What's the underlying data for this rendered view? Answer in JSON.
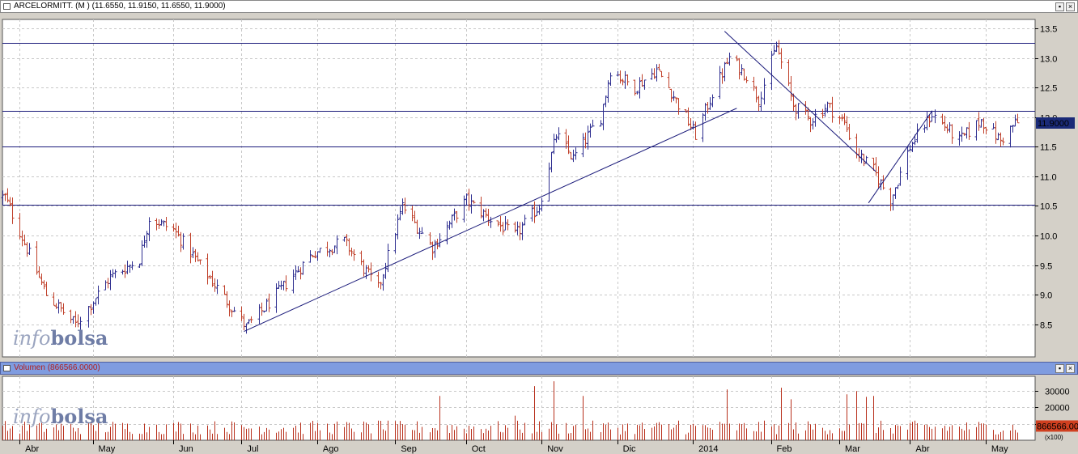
{
  "price_panel": {
    "title": "ARCELORMITT. (M ) (11.6550, 11.9150, 11.6550, 11.9000)",
    "last_price_label": "11.9000",
    "watermark": {
      "part1": "info",
      "part2": "bolsa"
    }
  },
  "volume_panel": {
    "title": "Volumen (866566.0000)",
    "last_volume_label": "866566.00",
    "scale_note": "(x100)",
    "watermark": {
      "part1": "info",
      "part2": "bolsa"
    }
  },
  "colors": {
    "up_bar": "#2d2d8f",
    "down_bar": "#c0402a",
    "trendline": "#1a1a7a",
    "volume_bar": "#b8301c",
    "price_header": "#ffffff",
    "volume_header": "#7f9ce0",
    "last_price_box": "#1a2a78",
    "last_volume_box": "#d04020"
  },
  "chart_data": [
    {
      "type": "ohlc",
      "title": "ARCELORMITT. (M ) (11.6550, 11.9150, 11.6550, 11.9000)",
      "y_ticks": [
        8.5,
        9.0,
        9.5,
        10.0,
        10.5,
        11.0,
        11.5,
        12.0,
        12.5,
        13.0,
        13.5
      ],
      "ylim": [
        7.95,
        13.65
      ],
      "x_months": [
        "Abr",
        "May",
        "Jun",
        "Jul",
        "Ago",
        "Sep",
        "Oct",
        "Nov",
        "Dic",
        "2014",
        "Feb",
        "Mar",
        "Abr",
        "May"
      ],
      "last": {
        "open": 11.655,
        "high": 11.915,
        "low": 11.655,
        "close": 11.9
      },
      "horizontal_lines": [
        13.25,
        12.1,
        11.5,
        10.52
      ],
      "trendlines": [
        {
          "from": [
            "2013-07-02",
            8.38
          ],
          "to": [
            "2014-01-20",
            12.15
          ]
        },
        {
          "from": [
            "2014-01-15",
            13.45
          ],
          "to": [
            "2014-03-18",
            11.08
          ]
        },
        {
          "from": [
            "2014-03-15",
            10.55
          ],
          "to": [
            "2014-04-10",
            12.1
          ]
        }
      ],
      "points": [
        {
          "x": "2013-03-26",
          "y": 10.65
        },
        {
          "x": "2013-04-12",
          "y": 9.0
        },
        {
          "x": "2013-04-24",
          "y": 8.5
        },
        {
          "x": "2013-05-08",
          "y": 9.3
        },
        {
          "x": "2013-05-20",
          "y": 9.6
        },
        {
          "x": "2013-05-24",
          "y": 10.3
        },
        {
          "x": "2013-06-03",
          "y": 10.1
        },
        {
          "x": "2013-06-24",
          "y": 8.95
        },
        {
          "x": "2013-07-03",
          "y": 8.45
        },
        {
          "x": "2013-07-15",
          "y": 9.0
        },
        {
          "x": "2013-07-30",
          "y": 9.7
        },
        {
          "x": "2013-08-12",
          "y": 9.9
        },
        {
          "x": "2013-08-26",
          "y": 9.1
        },
        {
          "x": "2013-09-05",
          "y": 10.5
        },
        {
          "x": "2013-09-17",
          "y": 9.8
        },
        {
          "x": "2013-10-01",
          "y": 10.6
        },
        {
          "x": "2013-10-10",
          "y": 10.3
        },
        {
          "x": "2013-10-21",
          "y": 10.0
        },
        {
          "x": "2013-10-31",
          "y": 10.5
        },
        {
          "x": "2013-11-07",
          "y": 11.7
        },
        {
          "x": "2013-11-14",
          "y": 11.3
        },
        {
          "x": "2013-11-25",
          "y": 12.0
        },
        {
          "x": "2013-11-29",
          "y": 12.8
        },
        {
          "x": "2013-12-09",
          "y": 12.5
        },
        {
          "x": "2013-12-18",
          "y": 12.8
        },
        {
          "x": "2013-12-23",
          "y": 12.5
        },
        {
          "x": "2014-01-03",
          "y": 11.7
        },
        {
          "x": "2014-01-10",
          "y": 12.4
        },
        {
          "x": "2014-01-17",
          "y": 13.0
        },
        {
          "x": "2014-01-24",
          "y": 12.7
        },
        {
          "x": "2014-01-29",
          "y": 12.3
        },
        {
          "x": "2014-02-05",
          "y": 13.2
        },
        {
          "x": "2014-02-12",
          "y": 12.2
        },
        {
          "x": "2014-02-19",
          "y": 11.95
        },
        {
          "x": "2014-02-26",
          "y": 12.2
        },
        {
          "x": "2014-03-05",
          "y": 11.9
        },
        {
          "x": "2014-03-10",
          "y": 11.4
        },
        {
          "x": "2014-03-17",
          "y": 11.1
        },
        {
          "x": "2014-03-24",
          "y": 10.6
        },
        {
          "x": "2014-04-01",
          "y": 11.5
        },
        {
          "x": "2014-04-10",
          "y": 12.05
        },
        {
          "x": "2014-04-21",
          "y": 11.6
        },
        {
          "x": "2014-04-30",
          "y": 11.95
        },
        {
          "x": "2014-05-08",
          "y": 11.6
        },
        {
          "x": "2014-05-14",
          "y": 11.9
        }
      ]
    },
    {
      "type": "bar",
      "title": "Volumen (866566.0000)",
      "y_ticks": [
        10000,
        20000,
        30000
      ],
      "ylim": [
        0,
        39000
      ],
      "last_value": 8665.66,
      "peaks": [
        {
          "x": "2013-04-02",
          "y": 9000
        },
        {
          "x": "2013-05-27",
          "y": 9500
        },
        {
          "x": "2013-08-26",
          "y": 12000
        },
        {
          "x": "2013-09-20",
          "y": 27000
        },
        {
          "x": "2013-10-21",
          "y": 15000
        },
        {
          "x": "2013-10-29",
          "y": 33000
        },
        {
          "x": "2013-11-06",
          "y": 36000
        },
        {
          "x": "2013-11-18",
          "y": 27000
        },
        {
          "x": "2013-12-27",
          "y": 12000
        },
        {
          "x": "2014-01-16",
          "y": 31000
        },
        {
          "x": "2014-02-07",
          "y": 32000
        },
        {
          "x": "2014-02-11",
          "y": 25000
        },
        {
          "x": "2014-03-06",
          "y": 28000
        },
        {
          "x": "2014-03-10",
          "y": 30000
        },
        {
          "x": "2014-03-14",
          "y": 26500
        },
        {
          "x": "2014-03-17",
          "y": 27000
        },
        {
          "x": "2014-04-28",
          "y": 8000
        }
      ]
    }
  ]
}
